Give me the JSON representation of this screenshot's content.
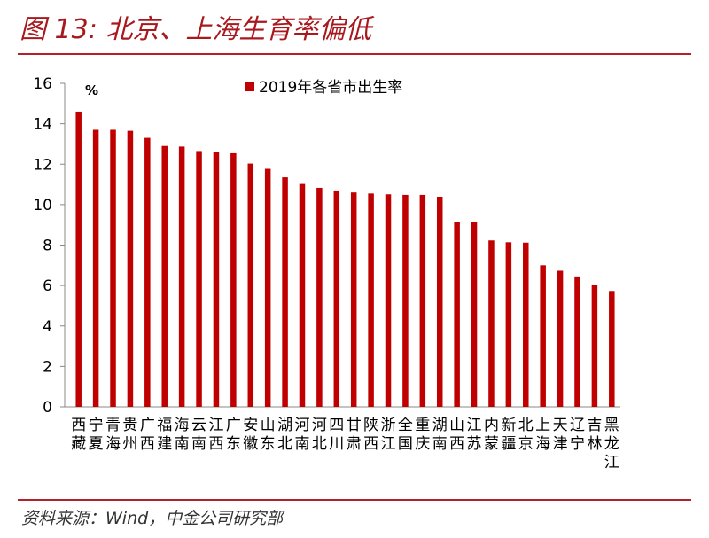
{
  "title": "图 13: 北京、上海生育率偏低",
  "source": "资料来源：Wind，中金公司研究部",
  "colors": {
    "bar": "#c00000",
    "title": "#a8191e",
    "rule": "#b3202a"
  },
  "chart_data": {
    "type": "bar",
    "unit": "%",
    "legend": "2019年各省市出生率",
    "legend_position": "top-center",
    "grid": false,
    "ylim": [
      0,
      16
    ],
    "yticks": [
      0,
      2,
      4,
      6,
      8,
      10,
      12,
      14,
      16
    ],
    "categories": [
      "西藏",
      "宁夏",
      "青海",
      "贵州",
      "广西",
      "福建",
      "海南",
      "云南",
      "江西",
      "广东",
      "安徽",
      "山东",
      "湖北",
      "河南",
      "河北",
      "四川",
      "甘肃",
      "陕西",
      "浙江",
      "全国",
      "重庆",
      "湖南",
      "山西",
      "江苏",
      "内蒙",
      "新疆",
      "北京",
      "上海",
      "天津",
      "辽宁",
      "吉林",
      "黑龙江"
    ],
    "series": [
      {
        "name": "2019年各省市出生率",
        "values": [
          14.6,
          13.7,
          13.7,
          13.65,
          13.3,
          12.9,
          12.87,
          12.65,
          12.6,
          12.54,
          12.03,
          11.77,
          11.35,
          11.02,
          10.83,
          10.7,
          10.6,
          10.55,
          10.51,
          10.48,
          10.48,
          10.39,
          9.12,
          9.12,
          8.23,
          8.14,
          8.12,
          7.0,
          6.73,
          6.45,
          6.05,
          5.73
        ]
      }
    ]
  }
}
